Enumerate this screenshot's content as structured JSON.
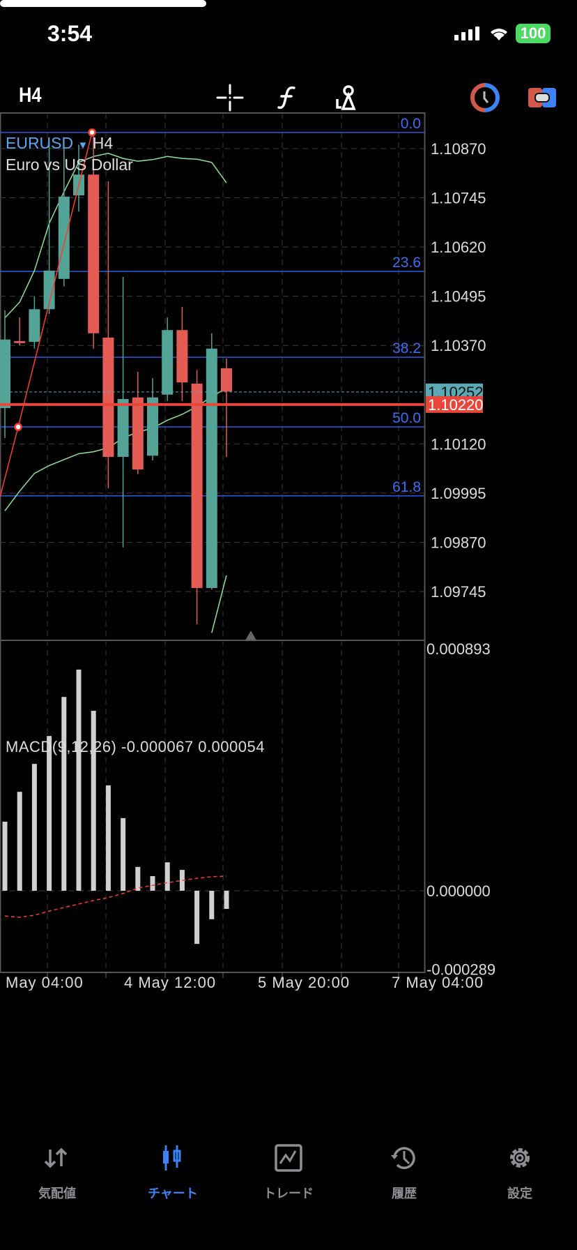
{
  "status": {
    "time": "3:54",
    "battery": "100"
  },
  "toolbar": {
    "timeframe": "H4",
    "icons": [
      "crosshair-icon",
      "indicator-f-icon",
      "objects-icon",
      "clock-icon",
      "trade-toggle-icon"
    ]
  },
  "chart": {
    "symbol": "EURUSD",
    "symbol_tf": "H4",
    "description": "Euro vs US Dollar",
    "colors": {
      "bull": "#53a497",
      "bear": "#e35b52",
      "fib": "#2c5ae0",
      "ma": "#8fe39a",
      "bid": "#e8463a",
      "ask": "#5aa9b5"
    },
    "price_ticks": [
      "1.10870",
      "1.10745",
      "1.10620",
      "1.10495",
      "1.10370",
      "1.10120",
      "1.09995",
      "1.09870",
      "1.09745"
    ],
    "price_tick_values": [
      1.1087,
      1.10745,
      1.1062,
      1.10495,
      1.1037,
      1.1012,
      1.09995,
      1.0987,
      1.09745
    ],
    "ask": {
      "label": "1.10252",
      "value": 1.10252
    },
    "bid": {
      "label": "1.10220",
      "value": 1.1022
    },
    "fib_levels": [
      {
        "label": "0.0",
        "price": 1.10911
      },
      {
        "label": "23.6",
        "price": 1.10558
      },
      {
        "label": "38.2",
        "price": 1.1034
      },
      {
        "label": "50.0",
        "price": 1.10163
      },
      {
        "label": "61.8",
        "price": 1.09988
      }
    ],
    "trendline": [
      {
        "i": -0.33,
        "price": 1.09985
      },
      {
        "i": 0.9,
        "price": 1.10163
      },
      {
        "i": 5.9,
        "price": 1.10911
      }
    ],
    "candles": [
      {
        "o": 1.10211,
        "h": 1.10459,
        "l": 1.10135,
        "c": 1.10385
      },
      {
        "o": 1.10381,
        "h": 1.10441,
        "l": 1.1037,
        "c": 1.10376
      },
      {
        "o": 1.10379,
        "h": 1.10494,
        "l": 1.10362,
        "c": 1.10462
      },
      {
        "o": 1.10462,
        "h": 1.1089,
        "l": 1.1045,
        "c": 1.1056
      },
      {
        "o": 1.10539,
        "h": 1.1088,
        "l": 1.1052,
        "c": 1.10748
      },
      {
        "o": 1.10751,
        "h": 1.1088,
        "l": 1.1071,
        "c": 1.10804
      },
      {
        "o": 1.10804,
        "h": 1.10911,
        "l": 1.10362,
        "c": 1.10401
      },
      {
        "o": 1.1039,
        "h": 1.10787,
        "l": 1.10007,
        "c": 1.10087
      },
      {
        "o": 1.10087,
        "h": 1.10544,
        "l": 1.09857,
        "c": 1.10234
      },
      {
        "o": 1.10238,
        "h": 1.10303,
        "l": 1.10043,
        "c": 1.10055
      },
      {
        "o": 1.1009,
        "h": 1.10287,
        "l": 1.10078,
        "c": 1.10238
      },
      {
        "o": 1.10245,
        "h": 1.10441,
        "l": 1.10229,
        "c": 1.10409
      },
      {
        "o": 1.10409,
        "h": 1.10468,
        "l": 1.10229,
        "c": 1.10276
      },
      {
        "o": 1.10273,
        "h": 1.10308,
        "l": 1.09662,
        "c": 1.09754
      },
      {
        "o": 1.09754,
        "h": 1.10401,
        "l": 1.0975,
        "c": 1.10362
      },
      {
        "o": 1.10312,
        "h": 1.10337,
        "l": 1.10087,
        "c": 1.10253
      }
    ],
    "ma_upper": [
      1.1044,
      1.1048,
      1.1056,
      1.1068,
      1.1076,
      1.10835,
      1.1085,
      1.10858,
      1.10845,
      1.10838,
      1.10842,
      1.1085,
      1.10845,
      1.10843,
      1.10835,
      1.10783
    ],
    "ma_middle": [
      1.0995,
      1.1,
      1.10045,
      1.10065,
      1.1008,
      1.10095,
      1.101,
      1.1011,
      1.10135,
      1.1015,
      1.1016,
      1.1018,
      1.10195,
      1.10215,
      1.1024,
      1.10262
    ],
    "ma_lower": [
      null,
      null,
      null,
      null,
      null,
      null,
      null,
      null,
      null,
      null,
      null,
      null,
      null,
      null,
      1.0964,
      1.09786
    ]
  },
  "macd": {
    "label": "MACD(9,12,26)",
    "value_main": "-0.000067",
    "value_signal": "0.000054",
    "ticks": [
      "0.000893",
      "0.000000",
      "-0.000289"
    ],
    "range": [
      -0.000289,
      0.000893
    ],
    "histogram": [
      0.000255,
      0.000365,
      0.000468,
      0.000571,
      0.000715,
      0.000816,
      0.000664,
      0.000389,
      0.000268,
      8.8e-05,
      5.4e-05,
      0.000105,
      7.7e-05,
      -0.000196,
      -0.000105,
      -6.7e-05
    ],
    "signal": [
      -9.3e-05,
      -9.8e-05,
      -9e-05,
      -7.5e-05,
      -6.2e-05,
      -4.9e-05,
      -3.6e-05,
      -2.5e-05,
      -1e-05,
      1e-05,
      2e-05,
      3e-05,
      3.8e-05,
      4.6e-05,
      5.2e-05,
      5.4e-05
    ]
  },
  "time_axis": [
    "May 04:00",
    "4 May 12:00",
    "5 May 20:00",
    "7 May 04:00"
  ],
  "nav": [
    {
      "label": "気配値",
      "icon": "quotes-arrows-icon"
    },
    {
      "label": "チャート",
      "icon": "chart-candles-icon",
      "active": true
    },
    {
      "label": "トレード",
      "icon": "trade-icon"
    },
    {
      "label": "履歴",
      "icon": "history-icon"
    },
    {
      "label": "設定",
      "icon": "settings-gear-icon"
    }
  ]
}
